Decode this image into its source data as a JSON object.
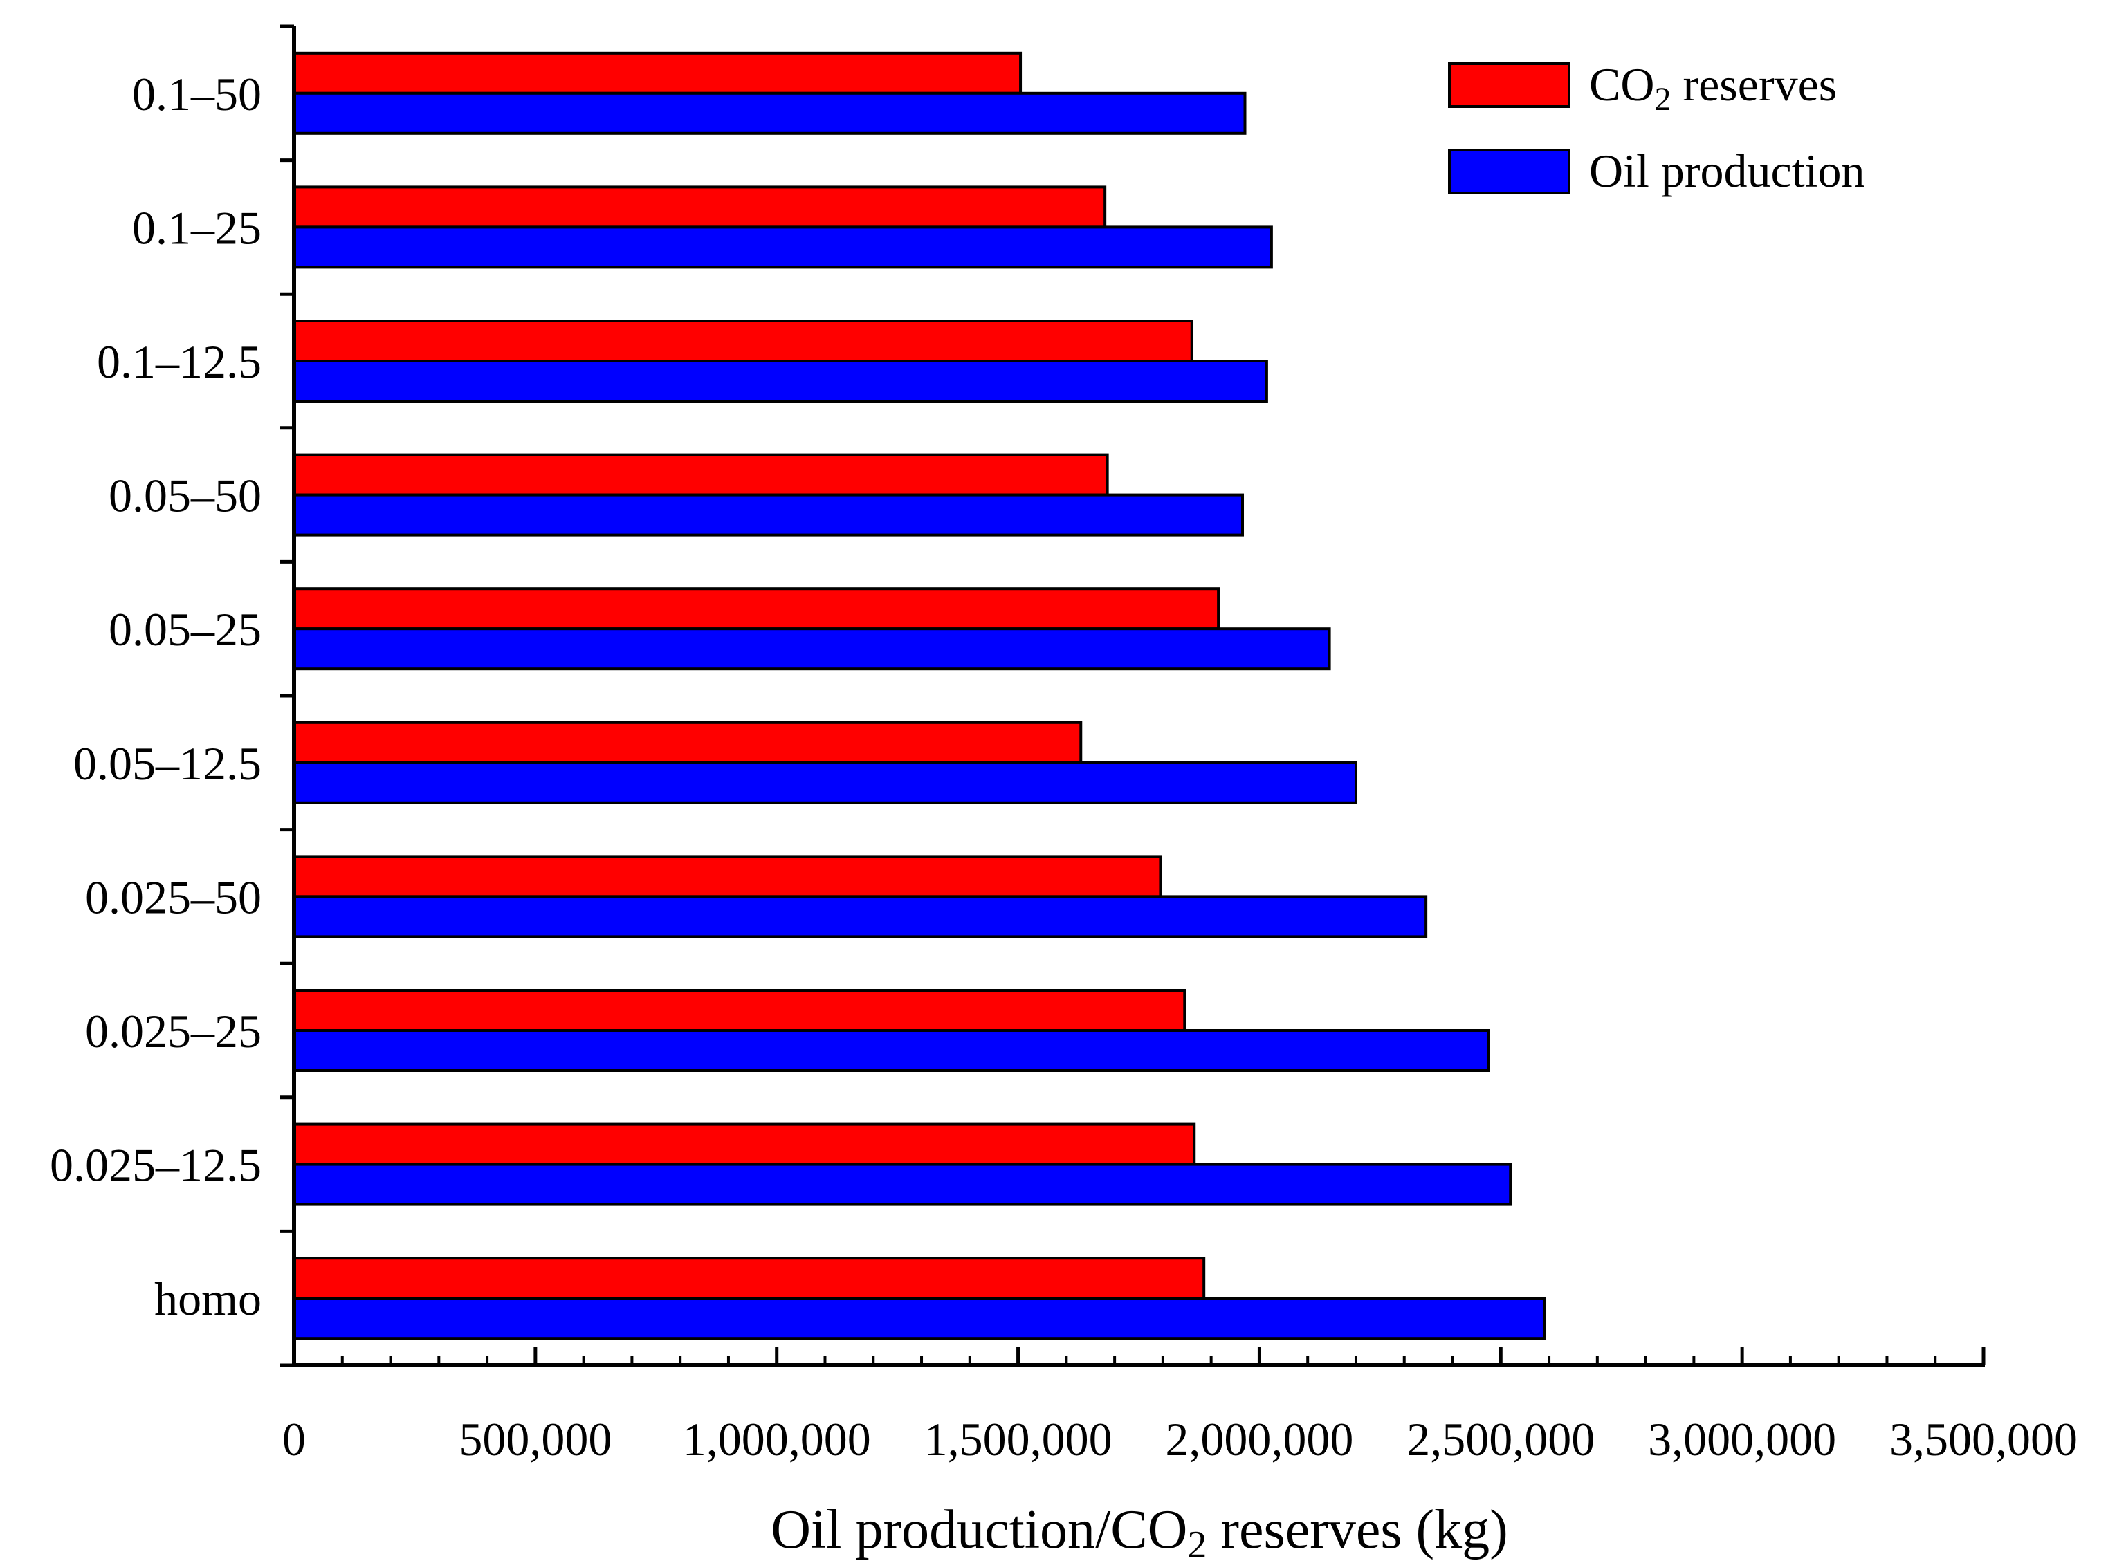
{
  "chart_data": {
    "type": "bar",
    "orientation": "horizontal",
    "title": "",
    "xlabel_parts": {
      "before": "Oil production/CO",
      "subscript": "2",
      "after": " reserves (kg)"
    },
    "ylabel": "",
    "xlim": [
      0,
      3500000
    ],
    "x_ticks": [
      0,
      500000,
      1000000,
      1500000,
      2000000,
      2500000,
      3000000,
      3500000
    ],
    "x_tick_labels": [
      "0",
      "500,000",
      "1,000,000",
      "1,500,000",
      "2,000,000",
      "2,500,000",
      "3,000,000",
      "3,500,000"
    ],
    "categories": [
      "0.1–50",
      "0.1–25",
      "0.1–12.5",
      "0.05–50",
      "0.05–25",
      "0.05–12.5",
      "0.025–50",
      "0.025–25",
      "0.025–12.5",
      "homo"
    ],
    "series": [
      {
        "name": "CO2 reserves",
        "legend_parts": {
          "before": "CO",
          "subscript": "2",
          "after": " reserves"
        },
        "color": "#ff0000",
        "values": [
          1505000,
          1680000,
          1860000,
          1685000,
          1915000,
          1630000,
          1795000,
          1845000,
          1865000,
          1885000
        ]
      },
      {
        "name": "Oil production",
        "legend_parts": {
          "before": "Oil production",
          "subscript": "",
          "after": ""
        },
        "color": "#0000ff",
        "values": [
          1970000,
          2025000,
          2015000,
          1965000,
          2145000,
          2200000,
          2345000,
          2475000,
          2520000,
          2590000
        ]
      }
    ],
    "legend_position": "top-right",
    "grid": false
  }
}
